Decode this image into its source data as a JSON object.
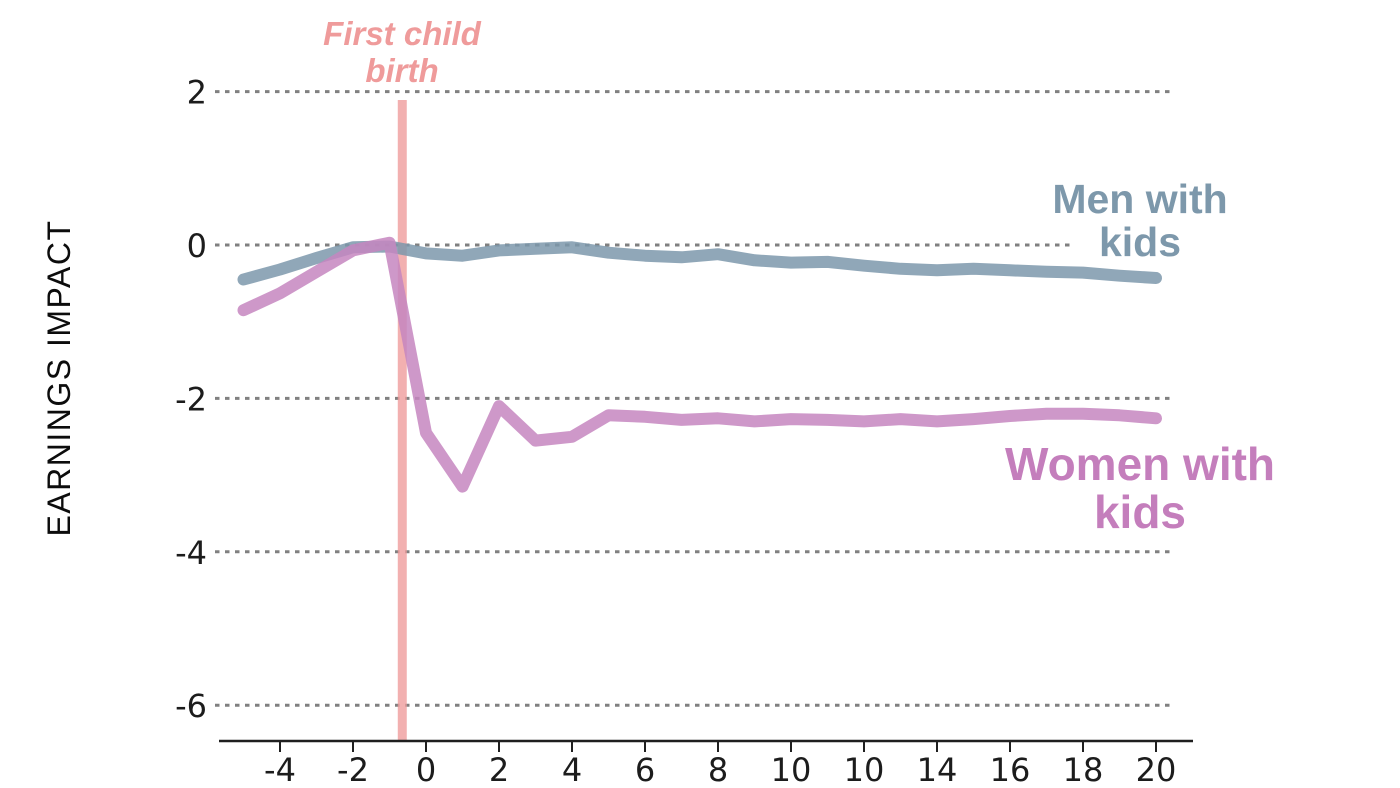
{
  "chart_data": {
    "type": "line",
    "title": "",
    "xlabel": "",
    "ylabel": "EARNINGS IMPACT",
    "x": [
      -5,
      -4,
      -3,
      -2,
      -1,
      0,
      1,
      2,
      3,
      4,
      5,
      6,
      7,
      8,
      9,
      10,
      11,
      12,
      13,
      14,
      15,
      16,
      17,
      18,
      19,
      20
    ],
    "series": [
      {
        "name": "Men with kids",
        "label_line1": "Men with",
        "label_line2": "kids",
        "color": "#7d98ac",
        "label_color": "#7d98ab",
        "values": [
          -0.45,
          -0.32,
          -0.17,
          -0.03,
          -0.02,
          -0.11,
          -0.14,
          -0.07,
          -0.05,
          -0.03,
          -0.1,
          -0.14,
          -0.16,
          -0.12,
          -0.2,
          -0.23,
          -0.22,
          -0.27,
          -0.31,
          -0.33,
          -0.31,
          -0.33,
          -0.35,
          -0.36,
          -0.4,
          -0.43
        ]
      },
      {
        "name": "Women with kids",
        "label_line1": "Women with",
        "label_line2": "kids",
        "color": "#c686c0",
        "label_color": "#c47ebc",
        "values": [
          -0.85,
          -0.63,
          -0.35,
          -0.07,
          0.03,
          -2.45,
          -3.15,
          -2.1,
          -2.55,
          -2.5,
          -2.22,
          -2.24,
          -2.28,
          -2.26,
          -2.3,
          -2.27,
          -2.28,
          -2.3,
          -2.27,
          -2.3,
          -2.27,
          -2.23,
          -2.2,
          -2.2,
          -2.22,
          -2.26
        ]
      }
    ],
    "event_line": {
      "x": -0.65,
      "color": "#ef9c9c",
      "label_color": "#ef9b9b",
      "label_line1": "First child",
      "label_line2": "birth"
    },
    "axes": {
      "ytick_labels": [
        "2",
        "0",
        "-2",
        "-4",
        "-6"
      ],
      "ytick_values": [
        2,
        0,
        -2,
        -4,
        -6
      ],
      "xtick_labels": [
        "-4",
        "-2",
        "0",
        "2",
        "4",
        "6",
        "8",
        "10",
        "10",
        "14",
        "16",
        "18",
        "20"
      ],
      "xtick_values": [
        -4,
        -2,
        0,
        2,
        4,
        6,
        8,
        10,
        12,
        14,
        16,
        18,
        20
      ],
      "xlim": [
        -5.7,
        21
      ],
      "ylim": [
        -6.6,
        2.4
      ],
      "grid": "horizontal-dashed",
      "grid_color": "#808080",
      "axis_color": "#1f1f1f",
      "legend_position": "inline-labels"
    }
  }
}
